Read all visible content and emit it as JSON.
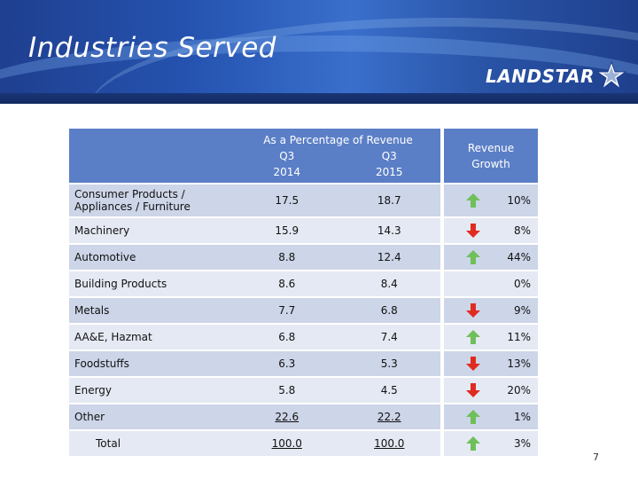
{
  "slide": {
    "title": "Industries Served",
    "logo_text": "LANDSTAR",
    "page_number": "7"
  },
  "table": {
    "header": {
      "percentage_title": "As a Percentage of Revenue",
      "col1_line1": "Q3",
      "col1_line2": "2014",
      "col2_line1": "Q3",
      "col2_line2": "2015",
      "growth_line1": "Revenue",
      "growth_line2": "Growth"
    },
    "rows": [
      {
        "label": "Consumer Products / Appliances / Furniture",
        "q3_2014": "17.5",
        "q3_2015": "18.7",
        "growth": "10%",
        "direction": "up"
      },
      {
        "label": "Machinery",
        "q3_2014": "15.9",
        "q3_2015": "14.3",
        "growth": "8%",
        "direction": "down"
      },
      {
        "label": "Automotive",
        "q3_2014": "8.8",
        "q3_2015": "12.4",
        "growth": "44%",
        "direction": "up"
      },
      {
        "label": "Building Products",
        "q3_2014": "8.6",
        "q3_2015": "8.4",
        "growth": "0%",
        "direction": "none"
      },
      {
        "label": "Metals",
        "q3_2014": "7.7",
        "q3_2015": "6.8",
        "growth": "9%",
        "direction": "down"
      },
      {
        "label": "AA&E, Hazmat",
        "q3_2014": "6.8",
        "q3_2015": "7.4",
        "growth": "11%",
        "direction": "up"
      },
      {
        "label": "Foodstuffs",
        "q3_2014": "6.3",
        "q3_2015": "5.3",
        "growth": "13%",
        "direction": "down"
      },
      {
        "label": "Energy",
        "q3_2014": "5.8",
        "q3_2015": "4.5",
        "growth": "20%",
        "direction": "down"
      },
      {
        "label": "Other",
        "q3_2014": "22.6",
        "q3_2015": "22.2",
        "growth": "1%",
        "direction": "up"
      },
      {
        "label": "Total",
        "q3_2014": "100.0",
        "q3_2015": "100.0",
        "growth": "3%",
        "direction": "up"
      }
    ]
  },
  "colors": {
    "up": "#6fbf5a",
    "down": "#e02b20",
    "header_bg": "#5b7fc6"
  }
}
